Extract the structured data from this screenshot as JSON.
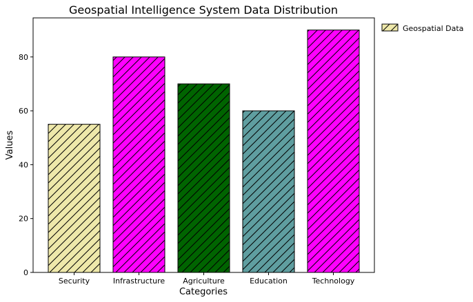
{
  "chart_data": {
    "type": "bar",
    "title": "Geospatial Intelligence System Data Distribution",
    "xlabel": "Categories",
    "ylabel": "Values",
    "categories": [
      "Security",
      "Infrastructure",
      "Agriculture",
      "Education",
      "Technology"
    ],
    "values": [
      55,
      80,
      70,
      60,
      90
    ],
    "bar_colors": [
      "#eee8aa",
      "#ff00ff",
      "#006400",
      "#5f9ea0",
      "#ff00ff"
    ],
    "ylim": [
      0,
      94.5
    ],
    "yticks": [
      0,
      20,
      40,
      60,
      80
    ],
    "grid": false,
    "hatch": "diagonal",
    "legend": {
      "placement": "outside-top-right",
      "entries": [
        {
          "label": "Geospatial Data",
          "color": "#eee8aa"
        }
      ]
    }
  }
}
